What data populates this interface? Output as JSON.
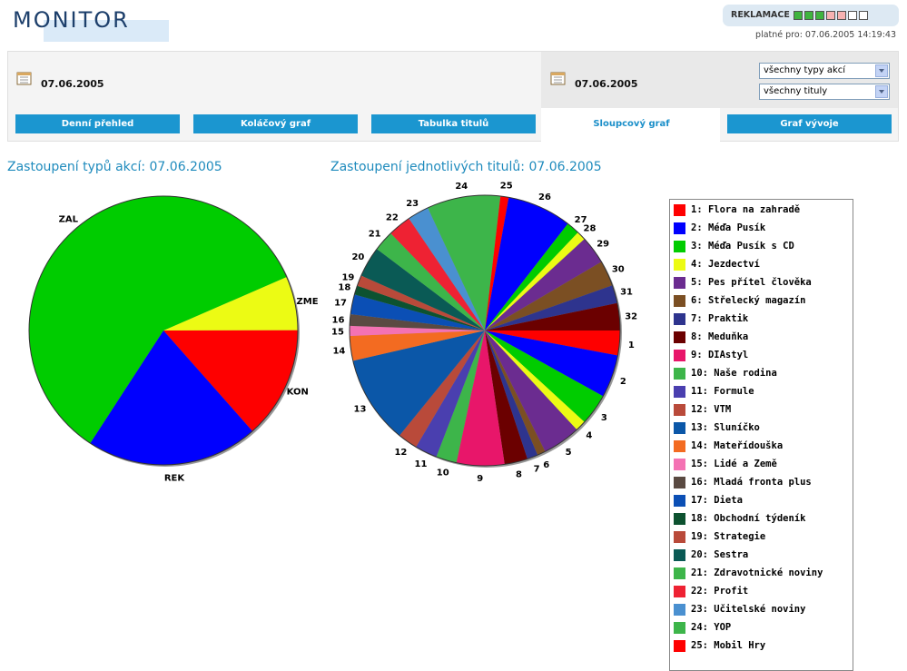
{
  "header": {
    "logo": "MONITOR",
    "reklamace_label": "REKLAMACE",
    "reklamace_squares": [
      "#3fb43f",
      "#3fb43f",
      "#3fb43f",
      "#f7b2b2",
      "#f7b2b2",
      "#ffffff",
      "#ffffff"
    ],
    "valid_text": "platné pro: 07.06.2005 14:19:43"
  },
  "filters": {
    "left_date": "07.06.2005",
    "right_date": "07.06.2005",
    "select_type": "všechny typy akcí",
    "select_title": "všechny tituly"
  },
  "tabs": [
    {
      "label": "Denní přehled",
      "active": false
    },
    {
      "label": "Koláčový graf",
      "active": false
    },
    {
      "label": "Tabulka titulů",
      "active": false
    },
    {
      "label": "Sloupcový graf",
      "active": true
    },
    {
      "label": "Graf vývoje",
      "active": false
    }
  ],
  "titles": {
    "left": "Zastoupení typů akcí: 07.06.2005",
    "right": "Zastoupení jednotlivých titulů: 07.06.2005"
  },
  "chart_data": [
    {
      "type": "pie",
      "title": "Zastoupení typů akcí: 07.06.2005",
      "categories": [
        "ZME",
        "KON",
        "REK",
        "ZAL"
      ],
      "values": [
        6.5,
        13.5,
        20.7,
        59.3
      ],
      "colors": [
        "#ecfb14",
        "#fe0000",
        "#0000fe",
        "#00cc00"
      ]
    },
    {
      "type": "pie",
      "title": "Zastoupení jednotlivých titulů: 07.06.2005",
      "slices": [
        {
          "label": "1",
          "value": 3.0,
          "color": "#fe0000"
        },
        {
          "label": "2",
          "value": 5.2,
          "color": "#0000fe"
        },
        {
          "label": "3",
          "value": 3.8,
          "color": "#00cc00"
        },
        {
          "label": "4",
          "value": 1.3,
          "color": "#ecfb14"
        },
        {
          "label": "5",
          "value": 4.6,
          "color": "#6b2c90"
        },
        {
          "label": "6",
          "value": 1.0,
          "color": "#7b4f23"
        },
        {
          "label": "7",
          "value": 1.3,
          "color": "#2e348e"
        },
        {
          "label": "8",
          "value": 2.8,
          "color": "#6b0000"
        },
        {
          "label": "9",
          "value": 5.8,
          "color": "#e8166a"
        },
        {
          "label": "10",
          "value": 2.5,
          "color": "#3db54a"
        },
        {
          "label": "11",
          "value": 2.7,
          "color": "#4a3faf"
        },
        {
          "label": "12",
          "value": 2.4,
          "color": "#b94a3a"
        },
        {
          "label": "13",
          "value": 10.7,
          "color": "#0b57a8"
        },
        {
          "label": "14",
          "value": 3.0,
          "color": "#f36b21"
        },
        {
          "label": "15",
          "value": 1.2,
          "color": "#f472b3"
        },
        {
          "label": "16",
          "value": 1.4,
          "color": "#5a4a42"
        },
        {
          "label": "17",
          "value": 2.4,
          "color": "#0b4fb5"
        },
        {
          "label": "18",
          "value": 1.1,
          "color": "#0d5230"
        },
        {
          "label": "19",
          "value": 1.3,
          "color": "#b94a3a"
        },
        {
          "label": "20",
          "value": 3.7,
          "color": "#0a5a55"
        },
        {
          "label": "21",
          "value": 2.5,
          "color": "#3db54a"
        },
        {
          "label": "22",
          "value": 2.8,
          "color": "#ee2233"
        },
        {
          "label": "23",
          "value": 2.6,
          "color": "#4a90d0"
        },
        {
          "label": "24",
          "value": 8.9,
          "color": "#3db54a"
        },
        {
          "label": "25",
          "value": 1.0,
          "color": "#fe0000"
        },
        {
          "label": "26",
          "value": 7.8,
          "color": "#0000fe"
        },
        {
          "label": "27",
          "value": 1.6,
          "color": "#00cc00"
        },
        {
          "label": "28",
          "value": 1.1,
          "color": "#ecfb14"
        },
        {
          "label": "29",
          "value": 3.4,
          "color": "#6b2c90"
        },
        {
          "label": "30",
          "value": 3.1,
          "color": "#7b4f23"
        },
        {
          "label": "31",
          "value": 2.2,
          "color": "#2e348e"
        },
        {
          "label": "32",
          "value": 3.3,
          "color": "#6b0000"
        }
      ]
    }
  ],
  "legend": [
    {
      "label": "1: Flora na zahradě",
      "color": "#fe0000"
    },
    {
      "label": "2: Méďa Pusík",
      "color": "#0000fe"
    },
    {
      "label": "3: Méďa Pusík s CD",
      "color": "#00cc00"
    },
    {
      "label": "4: Jezdectví",
      "color": "#ecfb14"
    },
    {
      "label": "5: Pes přítel člověka",
      "color": "#6b2c90"
    },
    {
      "label": "6: Střelecký magazín",
      "color": "#7b4f23"
    },
    {
      "label": "7: Praktik",
      "color": "#2e348e"
    },
    {
      "label": "8: Meduňka",
      "color": "#6b0000"
    },
    {
      "label": "9: DIAstyl",
      "color": "#e8166a"
    },
    {
      "label": "10: Naše rodina",
      "color": "#3db54a"
    },
    {
      "label": "11: Formule",
      "color": "#4a3faf"
    },
    {
      "label": "12: VTM",
      "color": "#b94a3a"
    },
    {
      "label": "13: Sluníčko",
      "color": "#0b57a8"
    },
    {
      "label": "14: Mateřídouška",
      "color": "#f36b21"
    },
    {
      "label": "15: Lidé a Země",
      "color": "#f472b3"
    },
    {
      "label": "16: Mladá fronta plus",
      "color": "#5a4a42"
    },
    {
      "label": "17: Dieta",
      "color": "#0b4fb5"
    },
    {
      "label": "18: Obchodní týdeník",
      "color": "#0d5230"
    },
    {
      "label": "19: Strategie",
      "color": "#b94a3a"
    },
    {
      "label": "20: Sestra",
      "color": "#0a5a55"
    },
    {
      "label": "21: Zdravotnické noviny",
      "color": "#3db54a"
    },
    {
      "label": "22: Profit",
      "color": "#ee2233"
    },
    {
      "label": "23: Učitelské noviny",
      "color": "#4a90d0"
    },
    {
      "label": "24: YOP",
      "color": "#3db54a"
    },
    {
      "label": "25: Mobil Hry",
      "color": "#fe0000"
    }
  ]
}
